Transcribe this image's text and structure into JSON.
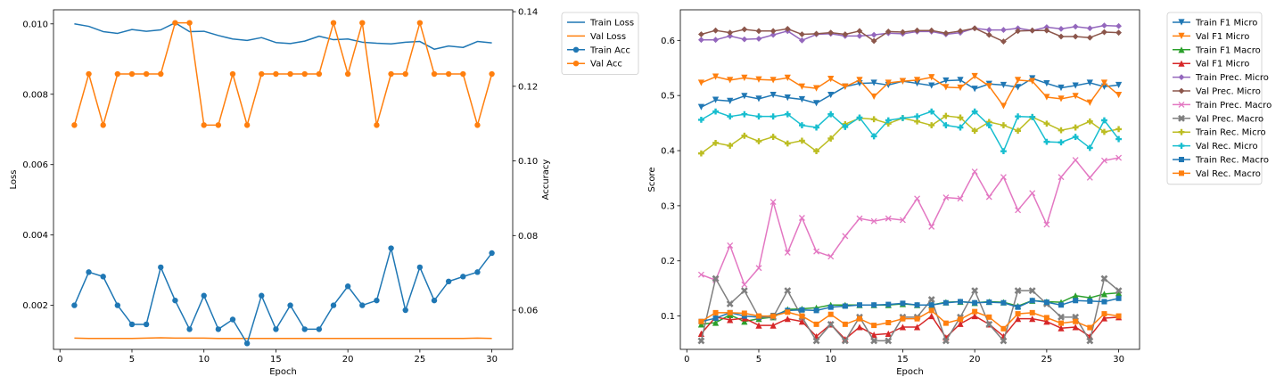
{
  "chart_data": [
    {
      "type": "line",
      "xlabel": "Epoch",
      "ylabel": "Loss",
      "ylabel_right": "Accuracy",
      "xlim": [
        -0.45,
        31.45
      ],
      "ylim": [
        0.00075,
        0.0104
      ],
      "ylim_right": [
        0.0495,
        0.1405
      ],
      "x_ticks": [
        0,
        5,
        10,
        15,
        20,
        25,
        30
      ],
      "y_ticks": [
        0.002,
        0.004,
        0.006,
        0.008,
        0.01
      ],
      "y_tick_labels": [
        "0.002",
        "0.004",
        "0.006",
        "0.008",
        "0.010"
      ],
      "y_ticks_right": [
        0.06,
        0.08,
        0.1,
        0.12,
        0.14
      ],
      "y_tick_labels_right": [
        "0.06",
        "0.08",
        "0.10",
        "0.12",
        "0.14"
      ],
      "grid": false,
      "legend_position": "outside-top-right",
      "x": [
        1,
        2,
        3,
        4,
        5,
        6,
        7,
        8,
        9,
        10,
        11,
        12,
        13,
        14,
        15,
        16,
        17,
        18,
        19,
        20,
        21,
        22,
        23,
        24,
        25,
        26,
        27,
        28,
        29,
        30
      ],
      "series": [
        {
          "name": "Train Loss",
          "axis": "left",
          "color": "#1f77b4",
          "marker": "none",
          "values": [
            0.01,
            0.00993,
            0.00978,
            0.00973,
            0.00984,
            0.00979,
            0.00983,
            0.01003,
            0.00978,
            0.00979,
            0.00967,
            0.00957,
            0.00953,
            0.00961,
            0.00947,
            0.00944,
            0.00951,
            0.00965,
            0.00955,
            0.00957,
            0.00948,
            0.00945,
            0.00943,
            0.00948,
            0.0095,
            0.00928,
            0.00937,
            0.00933,
            0.0095,
            0.00946
          ]
        },
        {
          "name": "Val Loss",
          "axis": "left",
          "color": "#ff7f0e",
          "marker": "none",
          "values": [
            0.00107,
            0.00106,
            0.00106,
            0.00106,
            0.00106,
            0.00107,
            0.00108,
            0.00107,
            0.00107,
            0.00107,
            0.00106,
            0.00106,
            0.00106,
            0.00106,
            0.00106,
            0.00106,
            0.00106,
            0.00106,
            0.00106,
            0.00106,
            0.00106,
            0.00106,
            0.00106,
            0.00106,
            0.00106,
            0.00106,
            0.00106,
            0.00106,
            0.00107,
            0.00106
          ]
        },
        {
          "name": "Train Acc",
          "axis": "right",
          "color": "#1f77b4",
          "marker": "o",
          "values": [
            0.0613,
            0.0702,
            0.069,
            0.0613,
            0.0562,
            0.0562,
            0.0715,
            0.0626,
            0.0549,
            0.0639,
            0.0549,
            0.0575,
            0.0511,
            0.0639,
            0.0549,
            0.0613,
            0.0549,
            0.0549,
            0.0613,
            0.0664,
            0.0613,
            0.0626,
            0.0766,
            0.06,
            0.0715,
            0.0626,
            0.0677,
            0.069,
            0.0702,
            0.0753
          ]
        },
        {
          "name": "Val Acc",
          "axis": "right",
          "color": "#ff7f0e",
          "marker": "o",
          "values": [
            0.1096,
            0.1233,
            0.1096,
            0.1233,
            0.1233,
            0.1233,
            0.1233,
            0.137,
            0.137,
            0.1096,
            0.1096,
            0.1233,
            0.1096,
            0.1233,
            0.1233,
            0.1233,
            0.1233,
            0.1233,
            0.137,
            0.1233,
            0.137,
            0.1096,
            0.1233,
            0.1233,
            0.137,
            0.1233,
            0.1233,
            0.1233,
            0.1096,
            0.1233
          ]
        }
      ]
    },
    {
      "type": "line",
      "xlabel": "Epoch",
      "ylabel": "Score",
      "xlim": [
        -0.45,
        31.45
      ],
      "ylim": [
        0.0395,
        0.6555
      ],
      "x_ticks": [
        0,
        5,
        10,
        15,
        20,
        25,
        30
      ],
      "y_ticks": [
        0.1,
        0.2,
        0.3,
        0.4,
        0.5,
        0.6
      ],
      "y_tick_labels": [
        "0.1",
        "0.2",
        "0.3",
        "0.4",
        "0.5",
        "0.6"
      ],
      "grid": false,
      "legend_position": "outside-top-right",
      "x": [
        1,
        2,
        3,
        4,
        5,
        6,
        7,
        8,
        9,
        10,
        11,
        12,
        13,
        14,
        15,
        16,
        17,
        18,
        19,
        20,
        21,
        22,
        23,
        24,
        25,
        26,
        27,
        28,
        29,
        30
      ],
      "series": [
        {
          "name": "Train F1 Micro",
          "color": "#1f77b4",
          "marker": "v",
          "values": [
            0.479,
            0.492,
            0.49,
            0.499,
            0.494,
            0.501,
            0.496,
            0.493,
            0.486,
            0.501,
            0.516,
            0.522,
            0.523,
            0.519,
            0.526,
            0.522,
            0.518,
            0.527,
            0.528,
            0.512,
            0.521,
            0.519,
            0.515,
            0.531,
            0.522,
            0.514,
            0.518,
            0.523,
            0.516,
            0.519
          ]
        },
        {
          "name": "Val F1 Micro",
          "color": "#ff7f0e",
          "marker": "v",
          "values": [
            0.523,
            0.534,
            0.528,
            0.532,
            0.529,
            0.528,
            0.532,
            0.516,
            0.513,
            0.53,
            0.516,
            0.528,
            0.498,
            0.523,
            0.526,
            0.528,
            0.533,
            0.515,
            0.514,
            0.535,
            0.517,
            0.481,
            0.528,
            0.526,
            0.497,
            0.494,
            0.499,
            0.487,
            0.523,
            0.501
          ]
        },
        {
          "name": "Train F1 Macro",
          "color": "#2ca02c",
          "marker": "^",
          "values": [
            0.085,
            0.088,
            0.102,
            0.09,
            0.095,
            0.098,
            0.112,
            0.113,
            0.115,
            0.12,
            0.12,
            0.12,
            0.12,
            0.12,
            0.122,
            0.12,
            0.12,
            0.125,
            0.126,
            0.124,
            0.126,
            0.125,
            0.118,
            0.128,
            0.126,
            0.125,
            0.137,
            0.133,
            0.14,
            0.142
          ]
        },
        {
          "name": "Val F1 Micro",
          "color": "#d62728",
          "marker": "^",
          "values": [
            0.068,
            0.098,
            0.093,
            0.096,
            0.083,
            0.083,
            0.095,
            0.09,
            0.063,
            0.085,
            0.058,
            0.08,
            0.066,
            0.068,
            0.08,
            0.08,
            0.1,
            0.061,
            0.086,
            0.1,
            0.085,
            0.063,
            0.095,
            0.095,
            0.09,
            0.078,
            0.08,
            0.063,
            0.096,
            0.098
          ]
        },
        {
          "name": "Train Prec. Micro",
          "color": "#9467bd",
          "marker": "D",
          "values": [
            0.601,
            0.601,
            0.608,
            0.602,
            0.603,
            0.61,
            0.617,
            0.6,
            0.611,
            0.612,
            0.608,
            0.608,
            0.61,
            0.613,
            0.612,
            0.616,
            0.616,
            0.611,
            0.614,
            0.622,
            0.619,
            0.619,
            0.622,
            0.618,
            0.624,
            0.621,
            0.625,
            0.622,
            0.627,
            0.626
          ]
        },
        {
          "name": "Val Prec. Micro",
          "color": "#8c564b",
          "marker": "D",
          "values": [
            0.611,
            0.618,
            0.614,
            0.62,
            0.617,
            0.617,
            0.621,
            0.611,
            0.612,
            0.614,
            0.611,
            0.617,
            0.599,
            0.616,
            0.615,
            0.618,
            0.618,
            0.613,
            0.617,
            0.622,
            0.61,
            0.598,
            0.617,
            0.618,
            0.618,
            0.607,
            0.607,
            0.605,
            0.615,
            0.614
          ]
        },
        {
          "name": "Train Prec. Macro",
          "color": "#e377c2",
          "marker": "x",
          "values": [
            0.175,
            0.165,
            0.228,
            0.157,
            0.187,
            0.307,
            0.215,
            0.278,
            0.217,
            0.208,
            0.245,
            0.277,
            0.272,
            0.277,
            0.274,
            0.313,
            0.262,
            0.315,
            0.313,
            0.362,
            0.316,
            0.352,
            0.292,
            0.323,
            0.266,
            0.352,
            0.383,
            0.351,
            0.382,
            0.387
          ]
        },
        {
          "name": "Val Prec. Macro",
          "color": "#7f7f7f",
          "marker": "X",
          "values": [
            0.055,
            0.168,
            0.122,
            0.146,
            0.098,
            0.098,
            0.146,
            0.098,
            0.055,
            0.085,
            0.055,
            0.098,
            0.055,
            0.055,
            0.098,
            0.098,
            0.13,
            0.055,
            0.098,
            0.146,
            0.085,
            0.055,
            0.146,
            0.146,
            0.122,
            0.098,
            0.098,
            0.055,
            0.168,
            0.146
          ]
        },
        {
          "name": "Train Rec. Micro",
          "color": "#bcbd22",
          "marker": "P",
          "values": [
            0.395,
            0.414,
            0.409,
            0.427,
            0.417,
            0.425,
            0.413,
            0.418,
            0.399,
            0.422,
            0.448,
            0.459,
            0.457,
            0.449,
            0.459,
            0.453,
            0.446,
            0.463,
            0.46,
            0.436,
            0.452,
            0.446,
            0.436,
            0.461,
            0.449,
            0.437,
            0.442,
            0.453,
            0.434,
            0.439
          ]
        },
        {
          "name": "Val Rec. Micro",
          "color": "#17becf",
          "marker": "P",
          "values": [
            0.456,
            0.471,
            0.462,
            0.466,
            0.462,
            0.462,
            0.466,
            0.446,
            0.442,
            0.466,
            0.443,
            0.46,
            0.426,
            0.455,
            0.459,
            0.462,
            0.471,
            0.446,
            0.442,
            0.471,
            0.446,
            0.399,
            0.462,
            0.461,
            0.416,
            0.415,
            0.425,
            0.405,
            0.455,
            0.421
          ]
        },
        {
          "name": "Train Rec. Macro",
          "color": "#1f77b4",
          "marker": "s",
          "values": [
            0.09,
            0.096,
            0.106,
            0.1,
            0.098,
            0.101,
            0.11,
            0.111,
            0.11,
            0.116,
            0.118,
            0.12,
            0.12,
            0.121,
            0.123,
            0.12,
            0.12,
            0.124,
            0.126,
            0.124,
            0.125,
            0.124,
            0.116,
            0.128,
            0.125,
            0.12,
            0.128,
            0.127,
            0.126,
            0.132
          ]
        },
        {
          "name": "Val Rec. Macro",
          "color": "#ff7f0e",
          "marker": "s",
          "values": [
            0.09,
            0.106,
            0.106,
            0.105,
            0.1,
            0.1,
            0.107,
            0.1,
            0.085,
            0.103,
            0.085,
            0.095,
            0.083,
            0.088,
            0.095,
            0.095,
            0.11,
            0.087,
            0.094,
            0.108,
            0.098,
            0.077,
            0.104,
            0.106,
            0.097,
            0.087,
            0.09,
            0.079,
            0.104,
            0.1
          ]
        }
      ]
    }
  ]
}
